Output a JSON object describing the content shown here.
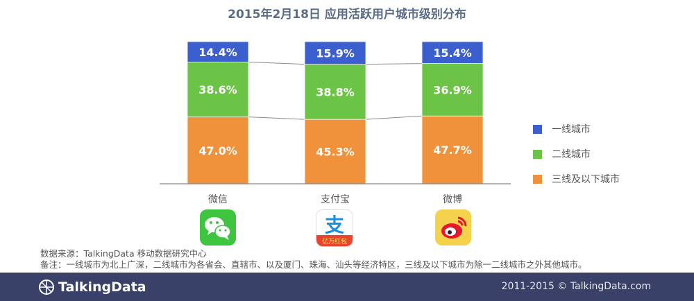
{
  "title": "2015年2月18日 应用活跃用户城市级别分布",
  "chart_data": {
    "type": "bar",
    "stacked": "100%",
    "categories": [
      "微信",
      "支付宝",
      "微博"
    ],
    "series": [
      {
        "name": "一线城市",
        "values": [
          14.4,
          15.9,
          15.4
        ],
        "labels": [
          "14.4%",
          "15.9%",
          "15.4%"
        ],
        "color": "#3c5fcf"
      },
      {
        "name": "二线城市",
        "values": [
          38.6,
          38.8,
          36.9
        ],
        "labels": [
          "38.6%",
          "38.8%",
          "36.9%"
        ],
        "color": "#6cc447"
      },
      {
        "name": "三线及以下城市",
        "values": [
          47.0,
          45.3,
          47.7
        ],
        "labels": [
          "47.0%",
          "45.3%",
          "47.7%"
        ],
        "color": "#f0913b"
      }
    ],
    "ylim": [
      0,
      100
    ],
    "legend_position": "right"
  },
  "apps": [
    {
      "name": "微信",
      "icon": "wechat-icon",
      "bg": "#3fc43f"
    },
    {
      "name": "支付宝",
      "icon": "alipay-icon",
      "icon_text": "支",
      "badge_text": "亿万红包",
      "bg": "#ffffff"
    },
    {
      "name": "微博",
      "icon": "weibo-icon",
      "bg": "#f5d24b"
    }
  ],
  "source": {
    "line1": "数据来源：TalkingData 移动数据研究中心",
    "line2": "备注：一线城市为北上广深，二线城市为各省会、直辖市、以及厦门、珠海、汕头等经济特区，三线及以下城市为除一二线城市之外其他城市。"
  },
  "footer": {
    "brand": "TalkingData",
    "copyright": "2011-2015 © TalkingData.com",
    "bg": "#3a4169"
  }
}
